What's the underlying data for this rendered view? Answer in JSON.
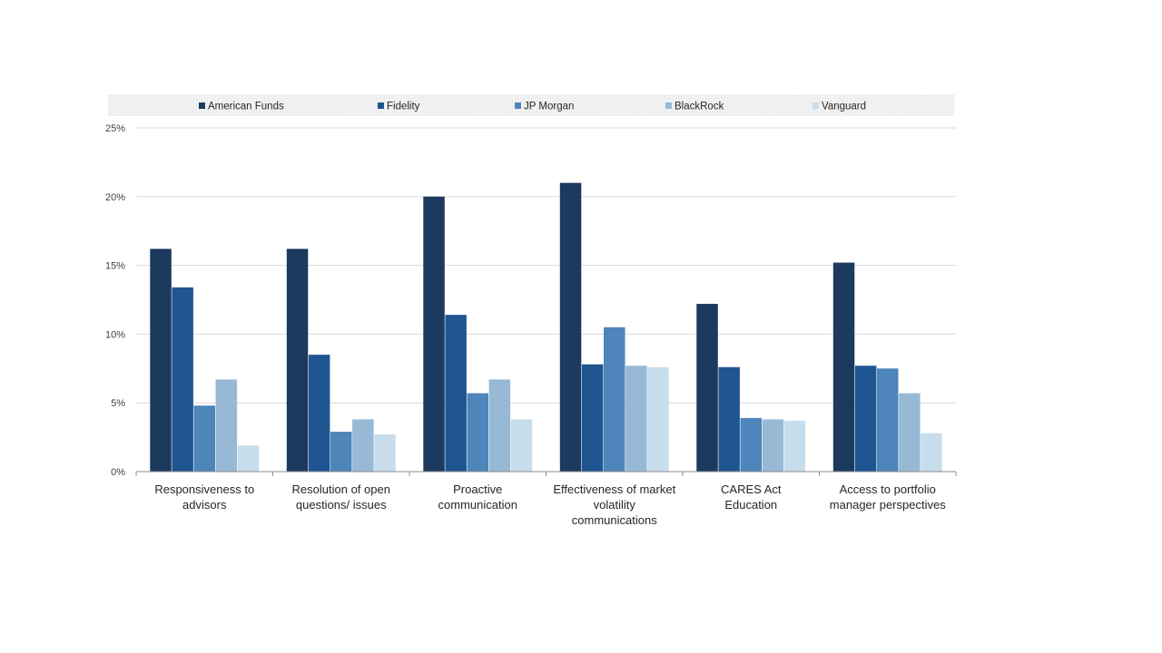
{
  "chart_data": {
    "type": "bar",
    "categories": [
      [
        "Responsiveness to",
        "advisors"
      ],
      [
        "Resolution of open",
        "questions/ issues"
      ],
      [
        "Proactive",
        "communication"
      ],
      [
        "Effectiveness of market",
        "volatility",
        "communications"
      ],
      [
        "CARES Act",
        "Education"
      ],
      [
        "Access to portfolio",
        "manager perspectives"
      ]
    ],
    "series": [
      {
        "name": "American Funds",
        "color": "#1b3a5e",
        "values": [
          16.2,
          16.2,
          20.0,
          21.0,
          12.2,
          15.2
        ]
      },
      {
        "name": "Fidelity",
        "color": "#1f5591",
        "values": [
          13.4,
          8.5,
          11.4,
          7.8,
          7.6,
          7.7
        ]
      },
      {
        "name": "JP Morgan",
        "color": "#4e85ba",
        "values": [
          4.8,
          2.9,
          5.7,
          10.5,
          3.9,
          7.5
        ]
      },
      {
        "name": "BlackRock",
        "color": "#97b9d6",
        "values": [
          6.7,
          3.8,
          6.7,
          7.7,
          3.8,
          5.7
        ]
      },
      {
        "name": "Vanguard",
        "color": "#c8ddec",
        "values": [
          1.9,
          2.7,
          3.8,
          7.6,
          3.7,
          2.8
        ]
      }
    ],
    "yticks": [
      "0%",
      "5%",
      "10%",
      "15%",
      "20%",
      "25%"
    ],
    "ylim": [
      0,
      25
    ],
    "grid": true,
    "legend_position": "top"
  }
}
